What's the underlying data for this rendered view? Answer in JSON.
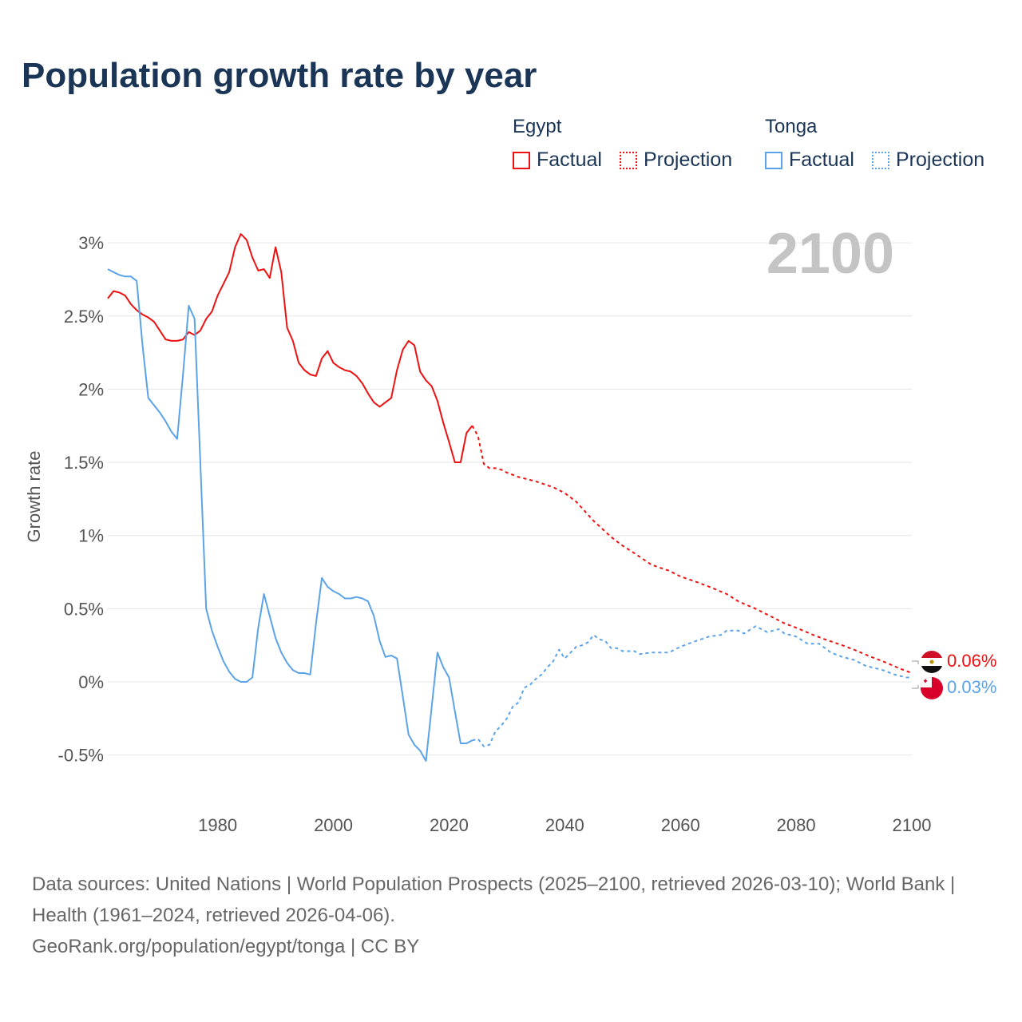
{
  "title": "Population growth rate by year",
  "legend": {
    "groups": [
      {
        "name": "Egypt",
        "color": "#ee1111",
        "factual": "Factual",
        "projection": "Projection"
      },
      {
        "name": "Tonga",
        "color": "#5ba3e8",
        "factual": "Factual",
        "projection": "Projection"
      }
    ]
  },
  "year_label": "2100",
  "end_labels": {
    "egypt": "0.06%",
    "tonga": "0.03%"
  },
  "footer": {
    "line1": "Data sources: United Nations | World Population Prospects (2025–2100, retrieved 2026-03-10); World Bank | Health (1961–2024, retrieved 2026-04-06).",
    "line2": "GeoRank.org/population/egypt/tonga | CC BY"
  },
  "chart_data": {
    "type": "line",
    "title": "Population growth rate by year",
    "xlabel": "",
    "ylabel": "Growth rate",
    "xlim": [
      1961,
      2100
    ],
    "ylim": [
      -0.7,
      3.3
    ],
    "xticks": [
      1980,
      2000,
      2020,
      2040,
      2060,
      2080,
      2100
    ],
    "xtick_labels": [
      "1980",
      "2000",
      "2020",
      "2040",
      "2060",
      "2080",
      "2100"
    ],
    "yticks": [
      -0.5,
      0,
      0.5,
      1,
      1.5,
      2,
      2.5,
      3
    ],
    "ytick_labels": [
      "-0.5%",
      "0%",
      "0.5%",
      "1%",
      "1.5%",
      "2%",
      "2.5%",
      "3%"
    ],
    "grid": true,
    "legend_position": "top-right",
    "series": [
      {
        "name": "Egypt Factual",
        "color": "#ee1111",
        "style": "solid",
        "x": [
          1961,
          1962,
          1963,
          1964,
          1965,
          1966,
          1967,
          1968,
          1969,
          1970,
          1971,
          1972,
          1973,
          1974,
          1975,
          1976,
          1977,
          1978,
          1979,
          1980,
          1981,
          1982,
          1983,
          1984,
          1985,
          1986,
          1987,
          1988,
          1989,
          1990,
          1991,
          1992,
          1993,
          1994,
          1995,
          1996,
          1997,
          1998,
          1999,
          2000,
          2001,
          2002,
          2003,
          2004,
          2005,
          2006,
          2007,
          2008,
          2009,
          2010,
          2011,
          2012,
          2013,
          2014,
          2015,
          2016,
          2017,
          2018,
          2019,
          2020,
          2021,
          2022,
          2023,
          2024
        ],
        "y": [
          2.62,
          2.67,
          2.66,
          2.64,
          2.58,
          2.54,
          2.51,
          2.49,
          2.46,
          2.4,
          2.34,
          2.33,
          2.33,
          2.34,
          2.39,
          2.37,
          2.4,
          2.48,
          2.53,
          2.64,
          2.72,
          2.8,
          2.97,
          3.06,
          3.02,
          2.9,
          2.81,
          2.82,
          2.76,
          2.97,
          2.8,
          2.42,
          2.33,
          2.18,
          2.13,
          2.1,
          2.09,
          2.21,
          2.26,
          2.18,
          2.15,
          2.13,
          2.12,
          2.09,
          2.04,
          1.97,
          1.91,
          1.88,
          1.91,
          1.94,
          2.13,
          2.27,
          2.33,
          2.3,
          2.12,
          2.06,
          2.02,
          1.92,
          1.77,
          1.64,
          1.5,
          1.5,
          1.7,
          1.75
        ]
      },
      {
        "name": "Egypt Projection",
        "color": "#ee1111",
        "style": "dotted",
        "x": [
          2024,
          2025,
          2026,
          2027,
          2028,
          2029,
          2030,
          2032,
          2035,
          2038,
          2040,
          2042,
          2045,
          2048,
          2050,
          2052,
          2055,
          2058,
          2060,
          2063,
          2065,
          2068,
          2070,
          2073,
          2075,
          2078,
          2080,
          2083,
          2085,
          2088,
          2090,
          2093,
          2095,
          2098,
          2100
        ],
        "y": [
          1.75,
          1.68,
          1.49,
          1.46,
          1.46,
          1.45,
          1.43,
          1.4,
          1.37,
          1.33,
          1.29,
          1.23,
          1.1,
          0.99,
          0.93,
          0.88,
          0.8,
          0.76,
          0.72,
          0.68,
          0.65,
          0.6,
          0.55,
          0.5,
          0.46,
          0.4,
          0.37,
          0.32,
          0.29,
          0.25,
          0.22,
          0.17,
          0.14,
          0.09,
          0.06
        ]
      },
      {
        "name": "Tonga Factual",
        "color": "#5ba3e8",
        "style": "solid",
        "x": [
          1961,
          1962,
          1963,
          1964,
          1965,
          1966,
          1967,
          1968,
          1969,
          1970,
          1971,
          1972,
          1973,
          1974,
          1975,
          1976,
          1977,
          1978,
          1979,
          1980,
          1981,
          1982,
          1983,
          1984,
          1985,
          1986,
          1987,
          1988,
          1989,
          1990,
          1991,
          1992,
          1993,
          1994,
          1995,
          1996,
          1997,
          1998,
          1999,
          2000,
          2001,
          2002,
          2003,
          2004,
          2005,
          2006,
          2007,
          2008,
          2009,
          2010,
          2011,
          2012,
          2013,
          2014,
          2015,
          2016,
          2017,
          2018,
          2019,
          2020,
          2021,
          2022,
          2023,
          2024
        ],
        "y": [
          2.82,
          2.8,
          2.78,
          2.77,
          2.77,
          2.74,
          2.3,
          1.94,
          1.89,
          1.84,
          1.78,
          1.71,
          1.66,
          2.1,
          2.57,
          2.48,
          1.5,
          0.5,
          0.35,
          0.24,
          0.14,
          0.07,
          0.02,
          0.0,
          0.0,
          0.03,
          0.37,
          0.6,
          0.45,
          0.3,
          0.2,
          0.13,
          0.08,
          0.06,
          0.06,
          0.05,
          0.4,
          0.71,
          0.65,
          0.62,
          0.6,
          0.57,
          0.57,
          0.58,
          0.57,
          0.55,
          0.45,
          0.28,
          0.17,
          0.18,
          0.16,
          -0.1,
          -0.36,
          -0.43,
          -0.47,
          -0.54,
          -0.17,
          0.2,
          0.1,
          0.03,
          -0.2,
          -0.42,
          -0.42,
          -0.4
        ]
      },
      {
        "name": "Tonga Projection",
        "color": "#5ba3e8",
        "style": "dotted",
        "x": [
          2024,
          2025,
          2026,
          2027,
          2028,
          2029,
          2030,
          2031,
          2032,
          2033,
          2034,
          2035,
          2036,
          2037,
          2038,
          2039,
          2040,
          2041,
          2042,
          2043,
          2044,
          2045,
          2046,
          2047,
          2048,
          2049,
          2050,
          2052,
          2053,
          2055,
          2058,
          2060,
          2062,
          2065,
          2067,
          2068,
          2070,
          2071,
          2073,
          2075,
          2077,
          2078,
          2080,
          2082,
          2084,
          2086,
          2088,
          2090,
          2092,
          2095,
          2097,
          2099,
          2100
        ],
        "y": [
          -0.4,
          -0.39,
          -0.44,
          -0.43,
          -0.34,
          -0.3,
          -0.25,
          -0.17,
          -0.14,
          -0.04,
          -0.02,
          0.02,
          0.05,
          0.1,
          0.14,
          0.22,
          0.16,
          0.2,
          0.24,
          0.25,
          0.27,
          0.32,
          0.29,
          0.28,
          0.23,
          0.23,
          0.21,
          0.21,
          0.19,
          0.2,
          0.2,
          0.24,
          0.27,
          0.31,
          0.32,
          0.35,
          0.35,
          0.33,
          0.38,
          0.34,
          0.36,
          0.33,
          0.31,
          0.26,
          0.26,
          0.2,
          0.17,
          0.15,
          0.11,
          0.08,
          0.05,
          0.03,
          0.03
        ]
      }
    ]
  }
}
